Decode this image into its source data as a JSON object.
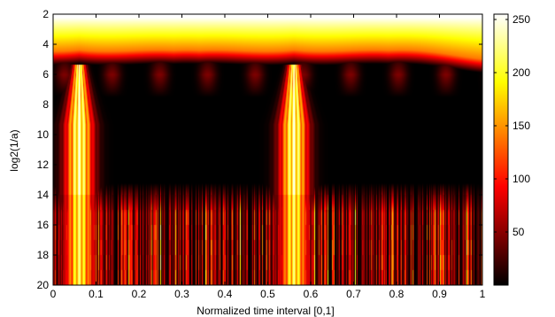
{
  "chart_data": {
    "type": "heatmap",
    "title": "",
    "xlabel": "Normalized time interval [0,1]",
    "ylabel": "log2(1/a)",
    "xlim": [
      0,
      1
    ],
    "ylim": [
      2,
      20
    ],
    "y_reversed": true,
    "x_ticks": [
      "0",
      "0.1",
      "0.2",
      "0.3",
      "0.4",
      "0.5",
      "0.6",
      "0.7",
      "0.8",
      "0.9",
      "1"
    ],
    "y_ticks": [
      "2",
      "4",
      "6",
      "8",
      "10",
      "12",
      "14",
      "16",
      "18",
      "20"
    ],
    "colormap": "hot",
    "colorbar": {
      "range": [
        0,
        255
      ],
      "ticks": [
        "50",
        "100",
        "150",
        "200",
        "250"
      ]
    },
    "features": {
      "event_centers_x": [
        0.06,
        0.56
      ],
      "high_band_scale_range": [
        2,
        5
      ],
      "low_activity_scale_range": [
        6,
        14
      ],
      "noise_scale_range": [
        14,
        20
      ]
    }
  }
}
